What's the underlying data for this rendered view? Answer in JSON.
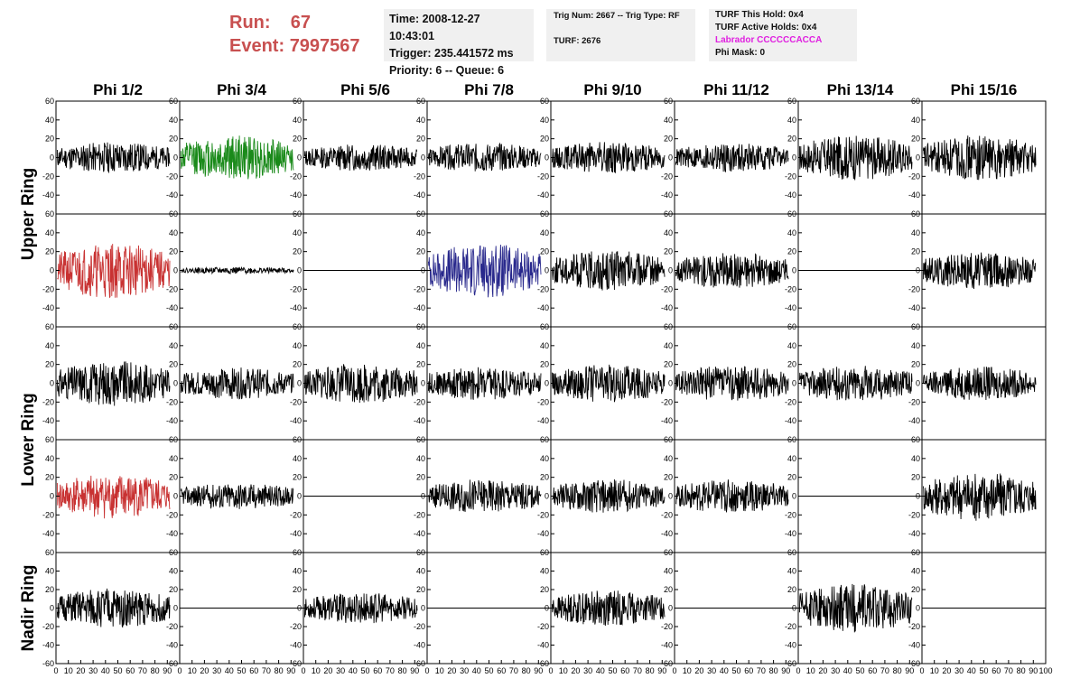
{
  "header": {
    "run_label": "Run:",
    "run_value": "67",
    "event_label": "Event:",
    "event_value": "7997567",
    "time": "Time: 2008-12-27 10:43:01",
    "trigger": "Trigger: 235.441572 ms",
    "priority": "Priority: 6 -- Queue: 6",
    "trig_num": "Trig Num: 2667 -- Trig Type: RF",
    "turf": "TURF: 2676",
    "turf_this_hold": "TURF This Hold: 0x4",
    "turf_active_holds": "TURF Active Holds: 0x4",
    "labrador": "Labrador CCCCCCACCA",
    "phi_mask": "Phi Mask: 0"
  },
  "colors": {
    "header_red": "#c85050",
    "labrador_magenta": "#e020e0",
    "trace_black": "#000000",
    "trace_green": "#1a8a1a",
    "trace_red": "#c83232",
    "trace_blue": "#28288c"
  },
  "chart_data": {
    "type": "line",
    "columns": [
      "Phi 1/2",
      "Phi 3/4",
      "Phi 5/6",
      "Phi 7/8",
      "Phi 9/10",
      "Phi 11/12",
      "Phi 13/14",
      "Phi 15/16"
    ],
    "ring_labels": [
      "Upper Ring",
      "Lower Ring",
      "Nadir Ring"
    ],
    "xlim": [
      0,
      100
    ],
    "x_ticks": [
      "0",
      "10",
      "20",
      "30",
      "40",
      "50",
      "60",
      "70",
      "80",
      "90",
      "100"
    ],
    "ylim_upper_lower": [
      -60,
      60
    ],
    "y_ticks_upper_lower": [
      "-40",
      "-20",
      "0",
      "20",
      "40",
      "60"
    ],
    "ylim_nadir": [
      -60,
      60
    ],
    "y_ticks_nadir": [
      "-60",
      "-40",
      "-20",
      "0",
      "20",
      "40",
      "60"
    ],
    "grid": false,
    "rows": [
      [
        {
          "color": "black",
          "amplitude": 14,
          "seed": 11
        },
        {
          "color": "green",
          "amplitude": 20,
          "seed": 12
        },
        {
          "color": "black",
          "amplitude": 12,
          "seed": 13
        },
        {
          "color": "black",
          "amplitude": 13,
          "seed": 14
        },
        {
          "color": "black",
          "amplitude": 14,
          "seed": 15
        },
        {
          "color": "black",
          "amplitude": 13,
          "seed": 16
        },
        {
          "color": "black",
          "amplitude": 20,
          "seed": 17
        },
        {
          "color": "black",
          "amplitude": 20,
          "seed": 18
        }
      ],
      [
        {
          "color": "red",
          "amplitude": 25,
          "seed": 21
        },
        {
          "color": "black",
          "amplitude": 3,
          "seed": 22
        },
        {
          "color": "black",
          "amplitude": 0,
          "seed": 23
        },
        {
          "color": "blue",
          "amplitude": 24,
          "seed": 24
        },
        {
          "color": "black",
          "amplitude": 18,
          "seed": 25
        },
        {
          "color": "black",
          "amplitude": 16,
          "seed": 26
        },
        {
          "color": "black",
          "amplitude": 0,
          "seed": 27
        },
        {
          "color": "black",
          "amplitude": 17,
          "seed": 28
        }
      ],
      [
        {
          "color": "black",
          "amplitude": 20,
          "seed": 31
        },
        {
          "color": "black",
          "amplitude": 14,
          "seed": 32
        },
        {
          "color": "black",
          "amplitude": 18,
          "seed": 33
        },
        {
          "color": "black",
          "amplitude": 15,
          "seed": 34
        },
        {
          "color": "black",
          "amplitude": 17,
          "seed": 35
        },
        {
          "color": "black",
          "amplitude": 16,
          "seed": 36
        },
        {
          "color": "black",
          "amplitude": 16,
          "seed": 37
        },
        {
          "color": "black",
          "amplitude": 15,
          "seed": 38
        }
      ],
      [
        {
          "color": "red",
          "amplitude": 20,
          "seed": 41
        },
        {
          "color": "black",
          "amplitude": 12,
          "seed": 42
        },
        {
          "color": "black",
          "amplitude": 0,
          "seed": 43
        },
        {
          "color": "black",
          "amplitude": 15,
          "seed": 44
        },
        {
          "color": "black",
          "amplitude": 15,
          "seed": 45
        },
        {
          "color": "black",
          "amplitude": 15,
          "seed": 46
        },
        {
          "color": "black",
          "amplitude": 0,
          "seed": 47
        },
        {
          "color": "black",
          "amplitude": 22,
          "seed": 48
        }
      ],
      [
        {
          "color": "black",
          "amplitude": 18,
          "seed": 51
        },
        {
          "color": "black",
          "amplitude": 0,
          "seed": 52
        },
        {
          "color": "black",
          "amplitude": 14,
          "seed": 53
        },
        {
          "color": "black",
          "amplitude": 0,
          "seed": 54
        },
        {
          "color": "black",
          "amplitude": 16,
          "seed": 55
        },
        {
          "color": "black",
          "amplitude": 0,
          "seed": 56
        },
        {
          "color": "black",
          "amplitude": 22,
          "seed": 57
        },
        {
          "color": "black",
          "amplitude": 0,
          "seed": 58
        }
      ]
    ]
  }
}
